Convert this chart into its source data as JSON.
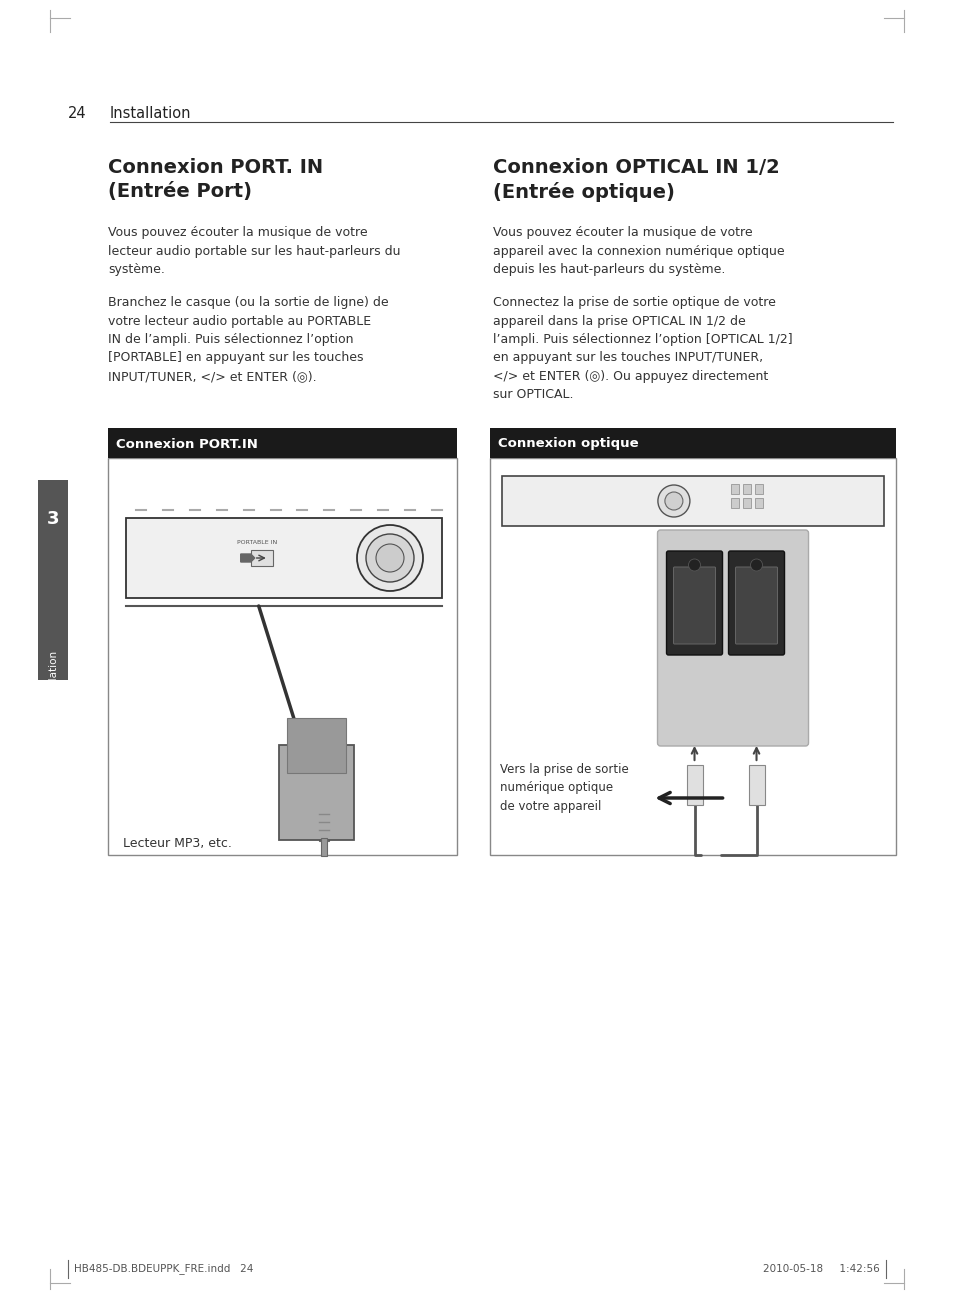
{
  "bg_color": "#ffffff",
  "page_number": "24",
  "header_text": "Installation",
  "section1_title_line1": "Connexion PORT. IN",
  "section1_title_line2": "(Entrée Port)",
  "section1_para1": "Vous pouvez écouter la musique de votre\nlecteur audio portable sur les haut-parleurs du\nsystème.",
  "section1_para2": "Branchez le casque (ou la sortie de ligne) de\nvotre lecteur audio portable au PORTABLE\nIN de l’ampli. Puis sélectionnez l’option\n[PORTABLE] en appuyant sur les touches\nINPUT/TUNER, </> et ENTER (◎).",
  "section1_box_title": "Connexion PORT.IN",
  "section1_box_caption": "Lecteur MP3, etc.",
  "section2_title_line1": "Connexion OPTICAL IN 1/2",
  "section2_title_line2": "(Entrée optique)",
  "section2_para1": "Vous pouvez écouter la musique de votre\nappareil avec la connexion numérique optique\ndepuis les haut-parleurs du système.",
  "section2_para2": "Connectez la prise de sortie optique de votre\nappareil dans la prise OPTICAL IN 1/2 de\nl’ampli. Puis sélectionnez l’option [OPTICAL 1/2]\nen appuyant sur les touches INPUT/TUNER,\n</> et ENTER (◎). Ou appuyez directement\nsur OPTICAL.",
  "section2_box_title": "Connexion optique",
  "section2_box_caption": "Vers la prise de sortie\nnumérique optique\nde votre appareil",
  "sidebar_label": "Installation",
  "sidebar_number": "3",
  "footer_left": "HB485-DB.BDEUPPK_FRE.indd   24",
  "footer_right": "2010-05-18     1:42:56",
  "box_title_bg": "#1a1a1a",
  "box_title_color": "#ffffff",
  "sidebar_bg": "#555555",
  "sidebar_text_color": "#ffffff",
  "header_line_color": "#333333",
  "crop_mark_color": "#aaaaaa",
  "text_color": "#222222",
  "body_color": "#333333"
}
